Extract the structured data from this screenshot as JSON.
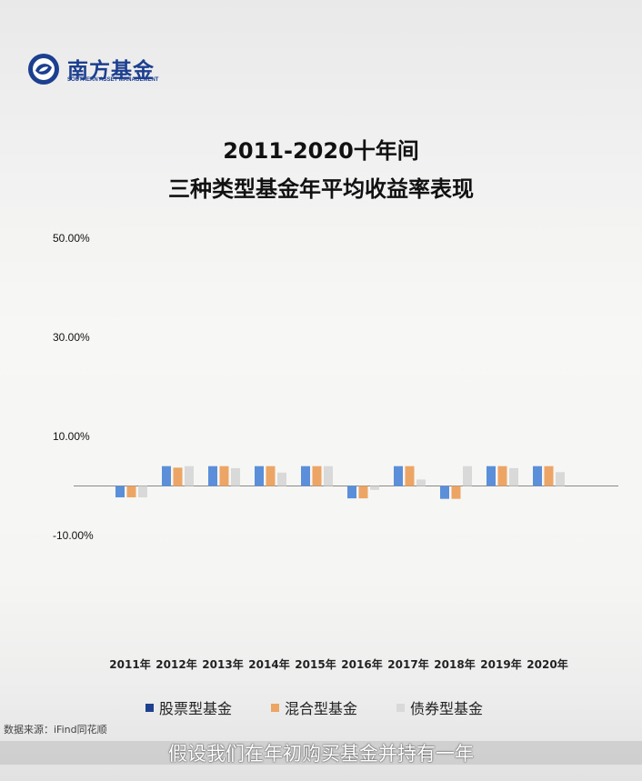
{
  "brand": {
    "name_cn": "南方基金",
    "name_en": "SOUTHERN ASSET MANAGEMENT",
    "color": "#1c3f8f"
  },
  "chart_data": {
    "type": "bar",
    "title": "2011-2020十年间",
    "subtitle": "三种类型基金年平均收益率表现",
    "xlabel": "",
    "ylabel": "",
    "ylim": [
      -10,
      50
    ],
    "yticks": [
      "50.00%",
      "30.00%",
      "10.00%",
      "-10.00%"
    ],
    "ytick_values": [
      50,
      30,
      10,
      -10
    ],
    "grid": false,
    "legend_position": "bottom",
    "categories": [
      "2011年",
      "2012年",
      "2013年",
      "2014年",
      "2015年",
      "2016年",
      "2017年",
      "2018年",
      "2019年",
      "2020年"
    ],
    "series": [
      {
        "name": "股票型基金",
        "color": "#5b8fd9",
        "legend_color": "#1f3f8f",
        "values": [
          -2.3,
          4.0,
          4.0,
          4.0,
          4.0,
          -2.5,
          4.0,
          -2.6,
          4.0,
          4.0
        ]
      },
      {
        "name": "混合型基金",
        "color": "#eda566",
        "legend_color": "#eda566",
        "values": [
          -2.3,
          3.7,
          4.0,
          4.0,
          4.0,
          -2.5,
          4.0,
          -2.6,
          4.0,
          4.0
        ]
      },
      {
        "name": "债券型基金",
        "color": "#d9d9d9",
        "legend_color": "#d9d9d9",
        "values": [
          -2.3,
          4.0,
          3.6,
          2.7,
          4.0,
          -0.8,
          1.3,
          4.0,
          3.6,
          2.8
        ]
      }
    ]
  },
  "source": "数据来源：iFind同花顺",
  "caption": "假设我们在年初购买基金并持有一年"
}
